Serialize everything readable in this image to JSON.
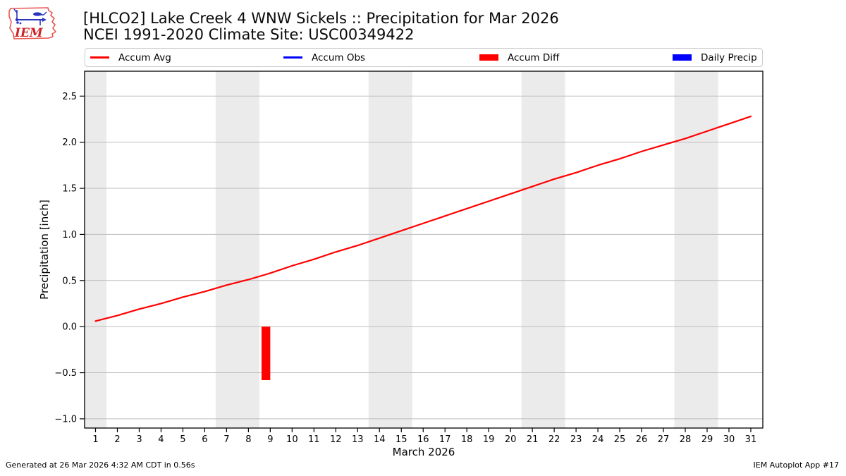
{
  "logo": {
    "text": "IEM"
  },
  "header": {
    "title": "[HLCO2] Lake Creek 4 WNW Sickels :: Precipitation for Mar 2026",
    "subtitle": "NCEI 1991-2020 Climate Site: USC00349422"
  },
  "legend": {
    "items": [
      {
        "label": "Accum Avg",
        "type": "line",
        "color": "#ff0000"
      },
      {
        "label": "Accum Obs",
        "type": "line",
        "color": "#0000ff"
      },
      {
        "label": "Accum Diff",
        "type": "patch",
        "color": "#ff0000"
      },
      {
        "label": "Daily Precip",
        "type": "patch",
        "color": "#0000ff"
      }
    ]
  },
  "footer": {
    "left": "Generated at 26 Mar 2026 4:32 AM CDT in 0.56s",
    "right": "IEM Autoplot App #17"
  },
  "chart_data": {
    "type": "line",
    "title": "[HLCO2] Lake Creek 4 WNW Sickels :: Precipitation for Mar 2026",
    "subtitle": "NCEI 1991-2020 Climate Site: USC00349422",
    "xlabel": "March 2026",
    "ylabel": "Precipitation [inch]",
    "xlim": [
      0.5,
      31.55
    ],
    "ylim": [
      -1.1,
      2.77
    ],
    "xticks": [
      1,
      2,
      3,
      4,
      5,
      6,
      7,
      8,
      9,
      10,
      11,
      12,
      13,
      14,
      15,
      16,
      17,
      18,
      19,
      20,
      21,
      22,
      23,
      24,
      25,
      26,
      27,
      28,
      29,
      30,
      31
    ],
    "yticks": [
      -1.0,
      -0.5,
      0.0,
      0.5,
      1.0,
      1.5,
      2.0,
      2.5
    ],
    "grid": true,
    "grid_color": "#bdbdbd",
    "band_color": "#ebebeb",
    "weekend_bands": [
      [
        0.5,
        1.5
      ],
      [
        6.5,
        8.5
      ],
      [
        13.5,
        15.5
      ],
      [
        20.5,
        22.5
      ],
      [
        27.5,
        29.5
      ]
    ],
    "bar_width_days": 0.4,
    "series": [
      {
        "name": "Accum Avg",
        "type": "line",
        "color": "#ff0000",
        "x": [
          1,
          2,
          3,
          4,
          5,
          6,
          7,
          8,
          9,
          10,
          11,
          12,
          13,
          14,
          15,
          16,
          17,
          18,
          19,
          20,
          21,
          22,
          23,
          24,
          25,
          26,
          27,
          28,
          29,
          30,
          31
        ],
        "values": [
          0.06,
          0.12,
          0.19,
          0.25,
          0.32,
          0.38,
          0.45,
          0.51,
          0.58,
          0.66,
          0.73,
          0.81,
          0.88,
          0.96,
          1.04,
          1.12,
          1.2,
          1.28,
          1.36,
          1.44,
          1.52,
          1.6,
          1.67,
          1.75,
          1.82,
          1.9,
          1.97,
          2.04,
          2.12,
          2.2,
          2.28
        ]
      },
      {
        "name": "Accum Obs",
        "type": "line",
        "color": "#0000ff",
        "x": [],
        "values": []
      },
      {
        "name": "Accum Diff",
        "type": "bar",
        "color": "#ff0000",
        "x": [
          9
        ],
        "values": [
          -0.58
        ]
      },
      {
        "name": "Daily Precip",
        "type": "bar",
        "color": "#0000ff",
        "x": [],
        "values": []
      }
    ]
  }
}
